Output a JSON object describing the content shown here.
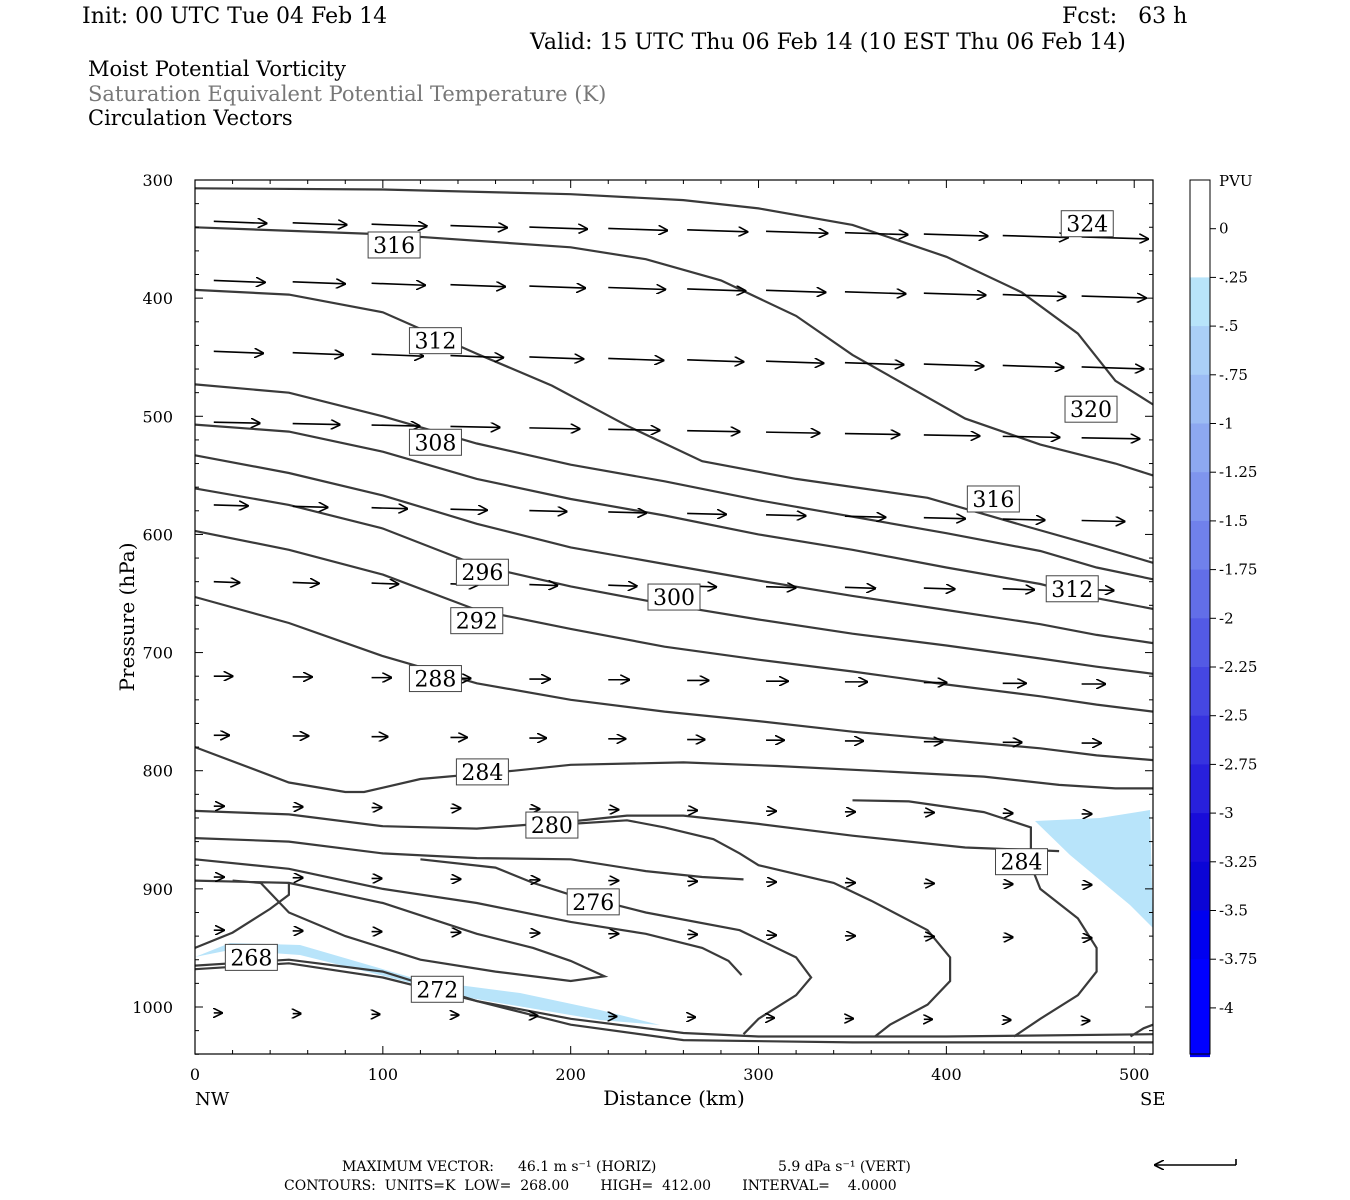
{
  "header": {
    "init": "Init: 00 UTC Tue 04 Feb 14",
    "fcst": "Fcst:   63 h",
    "valid": "Valid: 15 UTC Thu 06 Feb 14 (10 EST Thu 06 Feb 14)"
  },
  "titles": {
    "line1": "Moist Potential Vorticity",
    "line2": "Saturation Equivalent Potential Temperature (K)",
    "line3": "Circulation Vectors"
  },
  "footer": {
    "max_vector_label": "MAXIMUM VECTOR:",
    "max_horiz": "46.1 m s⁻¹ (HORIZ)",
    "max_vert": "5.9 dPa s⁻¹ (VERT)",
    "contours": "CONTOURS:  UNITS=K  LOW=  268.00       HIGH=  412.00       INTERVAL=    4.0000"
  },
  "colors": {
    "contour": "#3a3a3a",
    "shade_light": "#b8e4fa",
    "colorbar": [
      "#ffffff",
      "#ffffff",
      "#b8e4fa",
      "#aacff7",
      "#9cbcf4",
      "#8da8f1",
      "#7f95ee",
      "#7081eb",
      "#626ee8",
      "#535ae5",
      "#4547e2",
      "#3633df",
      "#2820dc",
      "#190cd9",
      "#0b05d6",
      "#0000f0",
      "#0000ff",
      "#0000ff"
    ]
  },
  "chart_data": {
    "type": "contour",
    "xlabel": "Distance (km)",
    "ylabel": "Pressure (hPa)",
    "xlim": [
      0,
      510
    ],
    "ylim": [
      1040,
      300
    ],
    "x_ticks": [
      0,
      100,
      200,
      300,
      400,
      500
    ],
    "x_tick_labels": [
      "0",
      "100",
      "200",
      "300",
      "400",
      "500"
    ],
    "x_end_labels": [
      "NW",
      "SE"
    ],
    "y_ticks": [
      300,
      400,
      500,
      600,
      700,
      800,
      900,
      1000
    ],
    "y_tick_labels": [
      "300",
      "400",
      "500",
      "600",
      "700",
      "800",
      "900",
      "1000"
    ],
    "colorbar": {
      "unit": "PVU",
      "labels": [
        "0",
        "-.25",
        "-.5",
        "-.75",
        "-1",
        "-1.25",
        "-1.5",
        "-1.75",
        "-2",
        "-2.25",
        "-2.5",
        "-2.75",
        "-3",
        "-3.25",
        "-3.5",
        "-3.75",
        "-4"
      ]
    },
    "contour_labels": [
      {
        "text": "324",
        "x": 475,
        "p": 337
      },
      {
        "text": "316",
        "x": 106,
        "p": 355
      },
      {
        "text": "312",
        "x": 128,
        "p": 436
      },
      {
        "text": "320",
        "x": 477,
        "p": 494
      },
      {
        "text": "308",
        "x": 128,
        "p": 522
      },
      {
        "text": "316",
        "x": 425,
        "p": 570
      },
      {
        "text": "296",
        "x": 153,
        "p": 632
      },
      {
        "text": "312",
        "x": 467,
        "p": 646
      },
      {
        "text": "300",
        "x": 255,
        "p": 653
      },
      {
        "text": "292",
        "x": 150,
        "p": 673
      },
      {
        "text": "288",
        "x": 128,
        "p": 722
      },
      {
        "text": "284",
        "x": 153,
        "p": 801
      },
      {
        "text": "280",
        "x": 190,
        "p": 846
      },
      {
        "text": "284",
        "x": 440,
        "p": 877
      },
      {
        "text": "276",
        "x": 212,
        "p": 911
      },
      {
        "text": "268",
        "x": 30,
        "p": 958
      },
      {
        "text": "272",
        "x": 129,
        "p": 985
      }
    ],
    "contours": [
      {
        "pts": [
          [
            0,
            307
          ],
          [
            100,
            308
          ],
          [
            200,
            312
          ],
          [
            260,
            317
          ],
          [
            300,
            324
          ],
          [
            350,
            338
          ],
          [
            400,
            365
          ],
          [
            440,
            395
          ],
          [
            470,
            430
          ],
          [
            490,
            470
          ],
          [
            510,
            490
          ]
        ]
      },
      {
        "pts": [
          [
            0,
            340
          ],
          [
            100,
            346
          ],
          [
            200,
            357
          ],
          [
            240,
            367
          ],
          [
            280,
            385
          ],
          [
            320,
            415
          ],
          [
            350,
            448
          ],
          [
            380,
            475
          ],
          [
            410,
            502
          ],
          [
            450,
            524
          ],
          [
            490,
            540
          ],
          [
            510,
            550
          ]
        ]
      },
      {
        "pts": [
          [
            0,
            393
          ],
          [
            50,
            397
          ],
          [
            100,
            412
          ],
          [
            150,
            447
          ],
          [
            190,
            474
          ],
          [
            230,
            508
          ],
          [
            270,
            538
          ],
          [
            320,
            553
          ],
          [
            390,
            569
          ],
          [
            440,
            592
          ],
          [
            480,
            610
          ],
          [
            510,
            624
          ]
        ]
      },
      {
        "pts": [
          [
            0,
            473
          ],
          [
            50,
            480
          ],
          [
            100,
            500
          ],
          [
            150,
            523
          ],
          [
            200,
            541
          ],
          [
            250,
            555
          ],
          [
            300,
            571
          ],
          [
            350,
            585
          ],
          [
            400,
            599
          ],
          [
            450,
            614
          ],
          [
            480,
            628
          ],
          [
            510,
            638
          ]
        ]
      },
      {
        "pts": [
          [
            0,
            507
          ],
          [
            50,
            513
          ],
          [
            100,
            530
          ],
          [
            150,
            553
          ],
          [
            200,
            570
          ],
          [
            250,
            584
          ],
          [
            300,
            600
          ],
          [
            350,
            613
          ],
          [
            400,
            628
          ],
          [
            450,
            642
          ],
          [
            480,
            654
          ],
          [
            510,
            663
          ]
        ]
      },
      {
        "pts": [
          [
            0,
            533
          ],
          [
            50,
            548
          ],
          [
            100,
            567
          ],
          [
            150,
            591
          ],
          [
            200,
            611
          ],
          [
            250,
            625
          ],
          [
            300,
            639
          ],
          [
            350,
            652
          ],
          [
            400,
            664
          ],
          [
            450,
            676
          ],
          [
            480,
            685
          ],
          [
            510,
            692
          ]
        ]
      },
      {
        "pts": [
          [
            0,
            561
          ],
          [
            50,
            575
          ],
          [
            100,
            595
          ],
          [
            150,
            626
          ],
          [
            200,
            644
          ],
          [
            250,
            659
          ],
          [
            300,
            672
          ],
          [
            350,
            684
          ],
          [
            400,
            694
          ],
          [
            450,
            705
          ],
          [
            480,
            712
          ],
          [
            510,
            718
          ]
        ]
      },
      {
        "pts": [
          [
            0,
            597
          ],
          [
            50,
            613
          ],
          [
            100,
            634
          ],
          [
            150,
            664
          ],
          [
            200,
            680
          ],
          [
            250,
            695
          ],
          [
            300,
            706
          ],
          [
            350,
            716
          ],
          [
            400,
            727
          ],
          [
            450,
            737
          ],
          [
            480,
            744
          ],
          [
            510,
            750
          ]
        ]
      },
      {
        "pts": [
          [
            0,
            653
          ],
          [
            50,
            675
          ],
          [
            100,
            703
          ],
          [
            150,
            726
          ],
          [
            200,
            740
          ],
          [
            250,
            750
          ],
          [
            300,
            758
          ],
          [
            350,
            767
          ],
          [
            400,
            774
          ],
          [
            450,
            781
          ],
          [
            480,
            787
          ],
          [
            510,
            791
          ]
        ]
      },
      {
        "pts": [
          [
            0,
            780
          ],
          [
            50,
            810
          ],
          [
            80,
            818
          ],
          [
            90,
            818
          ],
          [
            120,
            807
          ],
          [
            170,
            800
          ],
          [
            200,
            795
          ],
          [
            260,
            793
          ],
          [
            310,
            796
          ],
          [
            360,
            800
          ],
          [
            420,
            805
          ],
          [
            460,
            812
          ],
          [
            490,
            815
          ],
          [
            510,
            815
          ]
        ]
      },
      {
        "pts": [
          [
            0,
            834
          ],
          [
            50,
            837
          ],
          [
            100,
            847
          ],
          [
            150,
            849
          ],
          [
            200,
            843
          ],
          [
            230,
            838
          ],
          [
            260,
            838
          ],
          [
            300,
            845
          ],
          [
            350,
            855
          ],
          [
            410,
            865
          ],
          [
            460,
            868
          ]
        ]
      },
      {
        "pts": [
          [
            0,
            857
          ],
          [
            50,
            860
          ],
          [
            100,
            870
          ],
          [
            150,
            874
          ],
          [
            200,
            875
          ],
          [
            240,
            885
          ],
          [
            270,
            890
          ],
          [
            292,
            892
          ]
        ]
      },
      {
        "pts": [
          [
            0,
            875
          ],
          [
            50,
            883
          ],
          [
            100,
            900
          ],
          [
            150,
            912
          ],
          [
            200,
            928
          ],
          [
            240,
            938
          ],
          [
            270,
            950
          ],
          [
            284,
            961
          ],
          [
            291,
            973
          ]
        ]
      },
      {
        "pts": [
          [
            0,
            893
          ],
          [
            50,
            895
          ],
          [
            100,
            912
          ],
          [
            150,
            938
          ],
          [
            180,
            950
          ],
          [
            200,
            961
          ],
          [
            218,
            974
          ],
          [
            200,
            978
          ],
          [
            160,
            970
          ],
          [
            120,
            960
          ],
          [
            80,
            940
          ],
          [
            50,
            920
          ],
          [
            35,
            895
          ],
          [
            20,
            893
          ]
        ]
      },
      {
        "pts": [
          [
            0,
            950
          ],
          [
            20,
            937
          ],
          [
            40,
            917
          ],
          [
            50,
            905
          ],
          [
            50,
            895
          ]
        ]
      },
      {
        "pts": [
          [
            0,
            965
          ],
          [
            50,
            960
          ],
          [
            100,
            970
          ],
          [
            150,
            995
          ],
          [
            200,
            1015
          ],
          [
            260,
            1028
          ],
          [
            350,
            1030
          ],
          [
            510,
            1030
          ]
        ]
      },
      {
        "pts": [
          [
            0,
            968
          ],
          [
            50,
            963
          ],
          [
            100,
            975
          ],
          [
            150,
            995
          ],
          [
            200,
            1010
          ],
          [
            260,
            1022
          ],
          [
            300,
            1025
          ],
          [
            400,
            1025
          ],
          [
            510,
            1023
          ]
        ]
      },
      {
        "pts": [
          [
            292,
            1023
          ],
          [
            300,
            1010
          ],
          [
            320,
            990
          ],
          [
            328,
            975
          ],
          [
            320,
            958
          ],
          [
            290,
            935
          ],
          [
            240,
            920
          ],
          [
            220,
            912
          ],
          [
            200,
            905
          ],
          [
            180,
            895
          ],
          [
            160,
            882
          ],
          [
            120,
            875
          ]
        ]
      },
      {
        "pts": [
          [
            362,
            1025
          ],
          [
            370,
            1015
          ],
          [
            390,
            998
          ],
          [
            402,
            978
          ],
          [
            402,
            958
          ],
          [
            390,
            935
          ],
          [
            360,
            910
          ],
          [
            340,
            895
          ],
          [
            300,
            880
          ],
          [
            290,
            870
          ],
          [
            276,
            858
          ],
          [
            250,
            848
          ],
          [
            230,
            842
          ],
          [
            200,
            845
          ]
        ]
      },
      {
        "pts": [
          [
            436,
            1025
          ],
          [
            450,
            1010
          ],
          [
            470,
            990
          ],
          [
            480,
            970
          ],
          [
            480,
            950
          ],
          [
            470,
            925
          ],
          [
            450,
            900
          ],
          [
            445,
            880
          ],
          [
            445,
            860
          ],
          [
            445,
            848
          ],
          [
            420,
            835
          ],
          [
            380,
            826
          ],
          [
            350,
            825
          ]
        ]
      },
      {
        "pts": [
          [
            498,
            1025
          ],
          [
            505,
            1018
          ],
          [
            510,
            1015
          ]
        ]
      }
    ],
    "vectors_note": "circulation vectors, horizontal component dominant, increasing with height"
  }
}
